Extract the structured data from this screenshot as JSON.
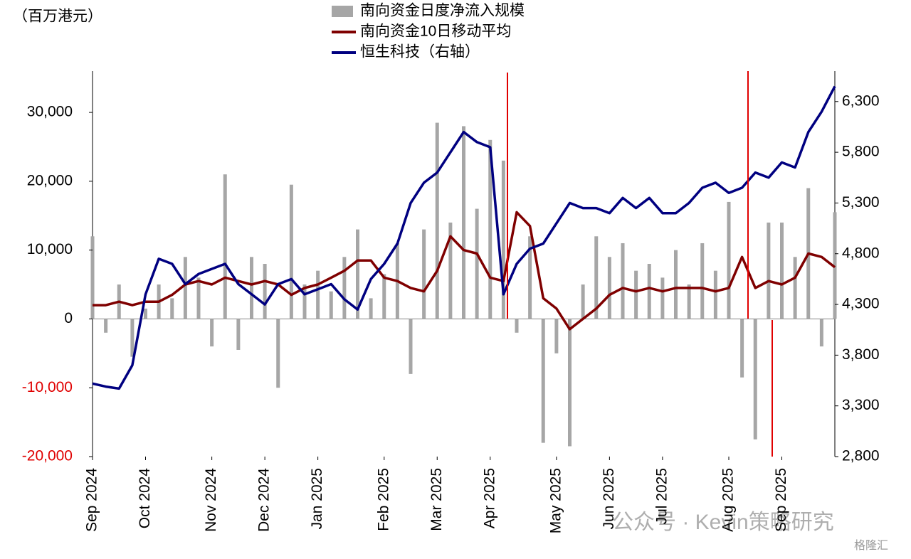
{
  "chart_data": {
    "type": "bar_line",
    "unit_label": "（百万港元）",
    "categories": [
      "Sep 2024",
      null,
      null,
      null,
      "Oct 2024",
      null,
      null,
      null,
      null,
      "Nov 2024",
      null,
      null,
      null,
      "Dec 2024",
      null,
      null,
      null,
      "Jan 2025",
      null,
      null,
      null,
      null,
      "Feb 2025",
      null,
      null,
      null,
      "Mar 2025",
      null,
      null,
      null,
      "Apr 2025",
      null,
      null,
      null,
      null,
      "May 2025",
      null,
      null,
      null,
      "Jun 2025",
      null,
      null,
      null,
      "Jul 2025",
      null,
      null,
      null,
      null,
      "Aug 2025",
      null,
      null,
      null,
      "Sep 2025",
      null,
      null,
      null,
      null
    ],
    "series": [
      {
        "name": "南向资金日度净流入规模",
        "kind": "bar",
        "color": "#a6a6a6",
        "values": [
          12000,
          -2000,
          5000,
          -5500,
          1500,
          5000,
          3000,
          9000,
          6000,
          -4000,
          21000,
          -4500,
          9000,
          8000,
          -10000,
          19500,
          5000,
          7000,
          4000,
          9000,
          13000,
          3000,
          6500,
          11000,
          -8000,
          13000,
          28500,
          14000,
          28000,
          16000,
          26000,
          23000,
          -2000,
          12000,
          -18000,
          -5000,
          -18500,
          5000,
          12000,
          9000,
          11000,
          7000,
          8000,
          6000,
          10000,
          5000,
          11000,
          7000,
          17000,
          -8500,
          -17500,
          14000,
          14000,
          9000,
          19000,
          -4000,
          15500
        ]
      },
      {
        "name": "南向资金10日移动平均",
        "kind": "line",
        "color": "#7f0000",
        "values": [
          2000,
          2000,
          2500,
          2000,
          2500,
          2500,
          3500,
          5000,
          5500,
          5000,
          6000,
          5500,
          5000,
          5500,
          5000,
          3500,
          4500,
          5000,
          6000,
          7000,
          8500,
          8500,
          6000,
          5500,
          4500,
          4000,
          7000,
          12000,
          10000,
          9500,
          6000,
          5500,
          15500,
          13500,
          3000,
          1500,
          -1500,
          0,
          1500,
          3500,
          4500,
          4000,
          4500,
          4000,
          4500,
          4500,
          4500,
          4000,
          4500,
          9000,
          4500,
          5500,
          5000,
          6000,
          9500,
          9000,
          7500
        ]
      },
      {
        "name": "恒生科技（右轴）",
        "kind": "line",
        "axis": "y2",
        "color": "#000080",
        "values": [
          3520,
          3490,
          3470,
          3700,
          4400,
          4750,
          4700,
          4500,
          4600,
          4650,
          4700,
          4500,
          4400,
          4300,
          4500,
          4550,
          4400,
          4450,
          4500,
          4350,
          4250,
          4550,
          4700,
          4900,
          5300,
          5500,
          5600,
          5800,
          6000,
          5900,
          5850,
          4400,
          4700,
          4850,
          4900,
          5100,
          5300,
          5250,
          5250,
          5200,
          5350,
          5250,
          5350,
          5200,
          5200,
          5300,
          5450,
          5500,
          5400,
          5450,
          5600,
          5550,
          5700,
          5650,
          6000,
          6200,
          6450
        ]
      }
    ],
    "ylim": [
      -20000,
      36000
    ],
    "yticks": [
      {
        "value": -20000,
        "label": "-20,000"
      },
      {
        "value": -10000,
        "label": "-10,000"
      },
      0,
      {
        "value": 10000,
        "label": "10,000"
      },
      {
        "value": 20000,
        "label": "20,000"
      },
      {
        "value": 30000,
        "label": "30,000"
      }
    ],
    "y2lim": [
      2800,
      6600
    ],
    "y2ticks": [
      {
        "value": 2800,
        "label": "2,800"
      },
      {
        "value": 3300,
        "label": "3,300"
      },
      {
        "value": 3800,
        "label": "3,800"
      },
      {
        "value": 4300,
        "label": "4,300"
      },
      {
        "value": 4800,
        "label": "4,800"
      },
      {
        "value": 5300,
        "label": "5,300"
      },
      {
        "value": 5800,
        "label": "5,800"
      },
      {
        "value": 6300,
        "label": "6,300"
      }
    ],
    "negative_tick_color": "#e00000",
    "watermark": "公众号 · Kevin策略研究",
    "source_mark": "格隆汇"
  }
}
